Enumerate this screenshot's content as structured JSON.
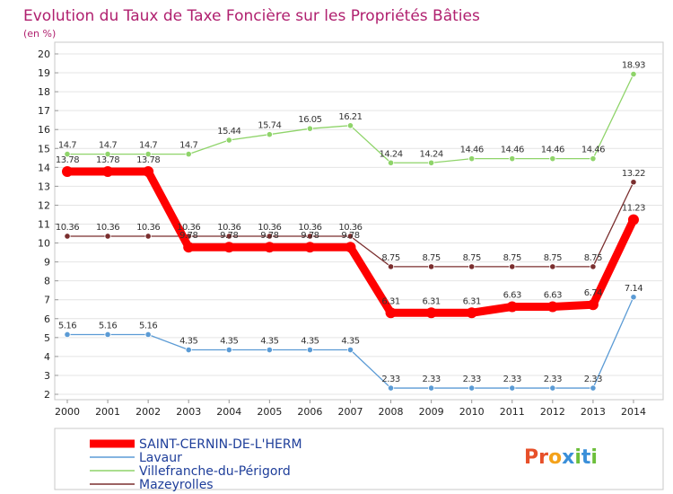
{
  "chart_data": {
    "type": "line",
    "title": "Evolution du Taux de Taxe Foncière sur les Propriétés Bâties",
    "ylabel": "(en %)",
    "xlabel": "",
    "ylim": [
      2,
      20
    ],
    "yticks": [
      2,
      3,
      4,
      5,
      6,
      7,
      8,
      9,
      10,
      11,
      12,
      13,
      14,
      15,
      16,
      17,
      18,
      19,
      20
    ],
    "categories": [
      "2000",
      "2001",
      "2002",
      "2003",
      "2004",
      "2005",
      "2006",
      "2007",
      "2008",
      "2009",
      "2010",
      "2011",
      "2012",
      "2013",
      "2014"
    ],
    "grid": "horizontal",
    "series": [
      {
        "name": "SAINT-CERNIN-DE-L'HERM",
        "color": "#ff0000",
        "values": [
          13.78,
          13.78,
          13.78,
          9.78,
          9.78,
          9.78,
          9.78,
          9.78,
          6.31,
          6.31,
          6.31,
          6.63,
          6.63,
          6.74,
          11.23
        ],
        "labels": [
          "13.78",
          "13.78",
          "13.78",
          "9.78",
          "9.78",
          "9.78",
          "9.78",
          "9.78",
          "6.31",
          "6.31",
          "6.31",
          "6.63",
          "6.63",
          "6.74",
          "11.23"
        ]
      },
      {
        "name": "Lavaur",
        "color": "#5b9bd5",
        "values": [
          5.16,
          5.16,
          5.16,
          4.35,
          4.35,
          4.35,
          4.35,
          4.35,
          2.33,
          2.33,
          2.33,
          2.33,
          2.33,
          2.33,
          7.14
        ],
        "labels": [
          "5.16",
          "5.16",
          "5.16",
          "4.35",
          "4.35",
          "4.35",
          "4.35",
          "4.35",
          "2.33",
          "2.33",
          "2.33",
          "2.33",
          "2.33",
          "2.33",
          "7.14"
        ]
      },
      {
        "name": "Villefranche-du-Périgord",
        "color": "#8fd46a",
        "values": [
          14.7,
          14.7,
          14.7,
          14.7,
          15.44,
          15.74,
          16.05,
          16.21,
          14.24,
          14.24,
          14.46,
          14.46,
          14.46,
          14.46,
          18.93
        ],
        "labels": [
          "14.7",
          "14.7",
          "14.7",
          "14.7",
          "15.44",
          "15.74",
          "16.05",
          "16.21",
          "14.24",
          "14.24",
          "14.46",
          "14.46",
          "14.46",
          "14.46",
          "18.93"
        ]
      },
      {
        "name": "Mazeyrolles",
        "color": "#7a2e2e",
        "values": [
          10.36,
          10.36,
          10.36,
          10.36,
          10.36,
          10.36,
          10.36,
          10.36,
          8.75,
          8.75,
          8.75,
          8.75,
          8.75,
          8.75,
          13.22
        ],
        "labels": [
          "10.36",
          "10.36",
          "10.36",
          "10.36",
          "10.36",
          "10.36",
          "10.36",
          "10.36",
          "8.75",
          "8.75",
          "8.75",
          "8.75",
          "8.75",
          "8.75",
          "13.22"
        ]
      }
    ],
    "legend": "bottom-left"
  },
  "logo": {
    "text": "Proxiti",
    "letters": [
      "P",
      "r",
      "o",
      "x",
      "i",
      "t",
      "i"
    ],
    "colors": [
      "#e7502a",
      "#e7502a",
      "#f4a21b",
      "#3a8fd9",
      "#6cbf3b",
      "#3a8fd9",
      "#6cbf3b"
    ]
  }
}
